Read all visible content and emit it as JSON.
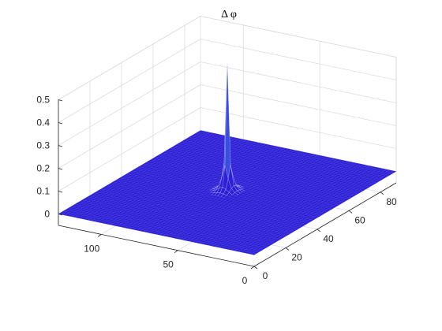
{
  "chart_data": {
    "type": "surface",
    "title": "Δ φ",
    "xlabel": "",
    "ylabel": "",
    "zlabel": "",
    "x_axis": {
      "range": [
        0,
        90
      ],
      "ticks": [
        "0",
        "20",
        "40",
        "60",
        "80"
      ]
    },
    "y_axis": {
      "range": [
        0,
        128
      ],
      "ticks": [
        "0",
        "50",
        "100"
      ]
    },
    "z_axis": {
      "range": [
        -0.05,
        0.5
      ],
      "ticks": [
        "0",
        "0.1",
        "0.2",
        "0.3",
        "0.4",
        "0.5"
      ]
    },
    "grid": true,
    "surface": {
      "description": "sharp narrow peak near the center of an otherwise flat grid near 0",
      "peak": {
        "x": 45,
        "y": 64,
        "z": 0.57
      },
      "baseline_z": 0,
      "colormap": [
        "#2d1fd6",
        "#3a4de0",
        "#2fb8d8",
        "#27d6c8"
      ]
    }
  }
}
